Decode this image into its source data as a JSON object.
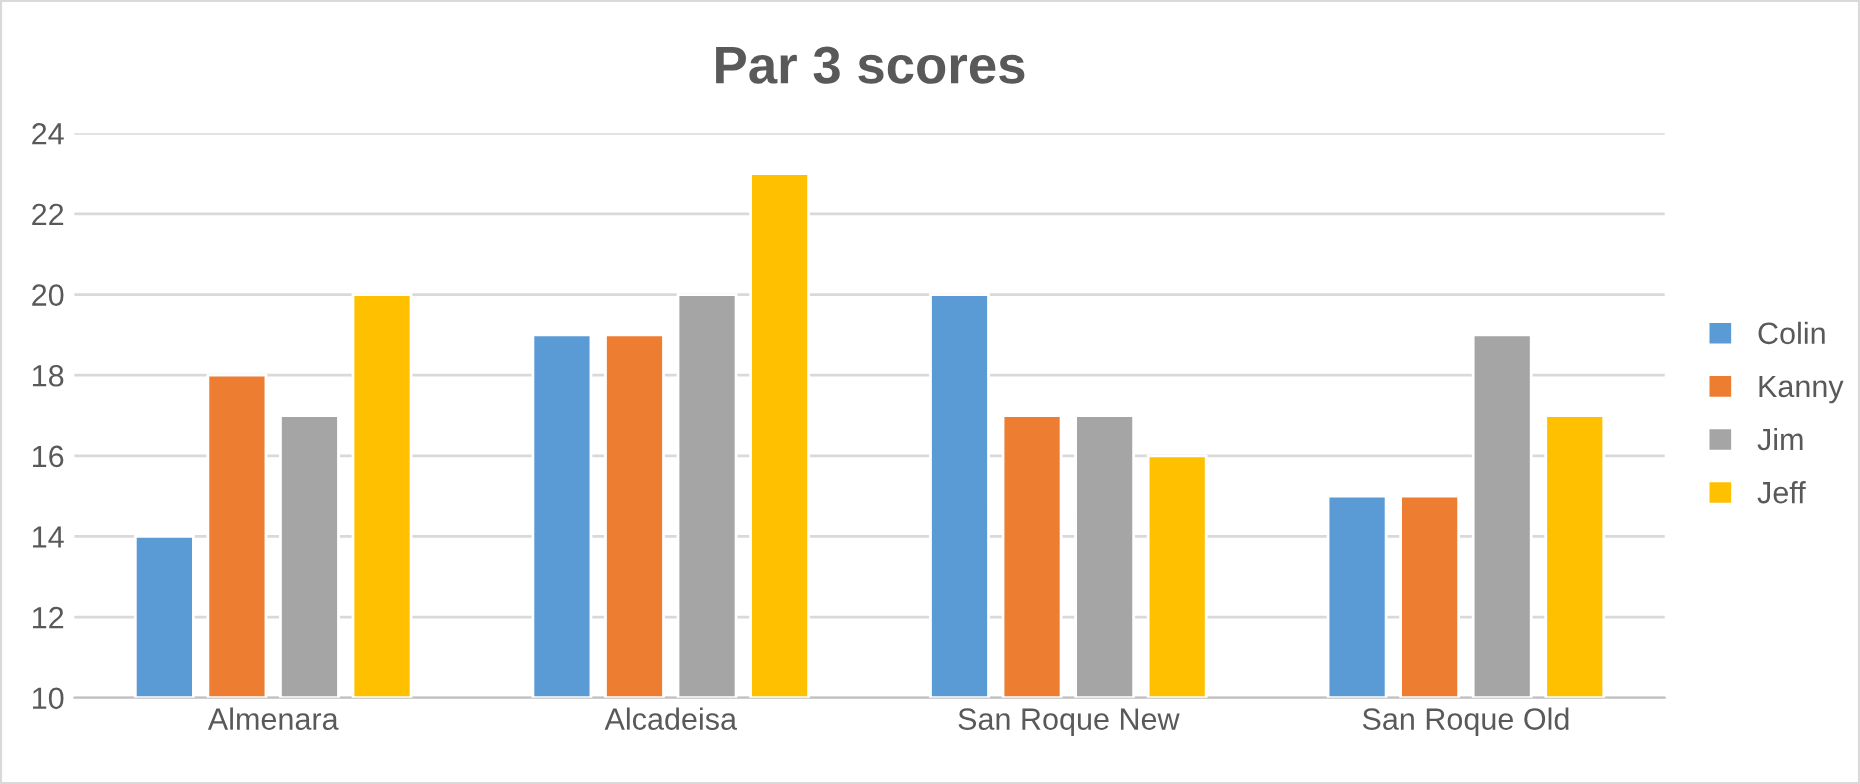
{
  "chart_data": {
    "type": "bar",
    "title": "Par 3 scores",
    "categories": [
      "Almenara",
      "Alcadeisa",
      "San Roque New",
      "San Roque Old"
    ],
    "series": [
      {
        "name": "Colin",
        "color": "#5b9bd5",
        "values": [
          14,
          19,
          20,
          15
        ]
      },
      {
        "name": "Kanny",
        "color": "#ed7d31",
        "values": [
          18,
          19,
          17,
          15
        ]
      },
      {
        "name": "Jim",
        "color": "#a5a5a5",
        "values": [
          17,
          20,
          17,
          19
        ]
      },
      {
        "name": "Jeff",
        "color": "#ffc000",
        "values": [
          20,
          23,
          16,
          17
        ]
      }
    ],
    "ylim": [
      10,
      24
    ],
    "yticks": [
      10,
      12,
      14,
      16,
      18,
      20,
      22,
      24
    ],
    "grid": "y",
    "legend": "right"
  }
}
